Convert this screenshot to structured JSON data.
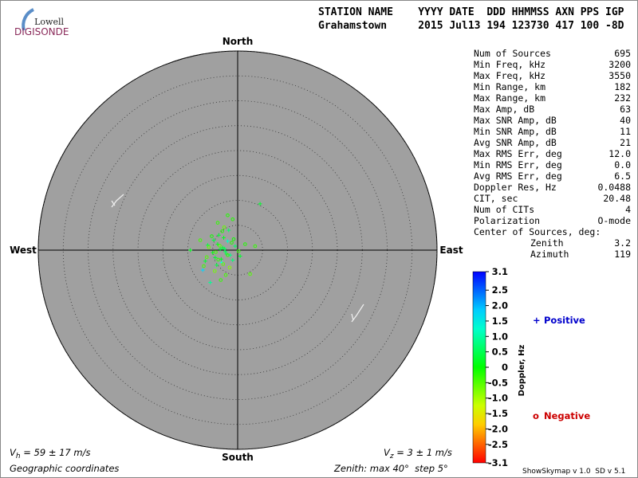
{
  "logo": {
    "line1": "Lowell",
    "line2": "DIGISONDE"
  },
  "header": {
    "columns": "STATION NAME    YYYY DATE  DDD HHMMSS AXN PPS IGP",
    "values": "Grahamstown     2015 Jul13 194 123730 417 100 -8D"
  },
  "stats": [
    [
      "Num of Sources",
      "695"
    ],
    [
      "Min Freq, kHz",
      "3200"
    ],
    [
      "Max Freq, kHz",
      "3550"
    ],
    [
      "Min Range, km",
      "182"
    ],
    [
      "Max Range, km",
      "232"
    ],
    [
      "Max Amp, dB",
      "63"
    ],
    [
      "Max SNR Amp, dB",
      "40"
    ],
    [
      "Min SNR Amp, dB",
      "11"
    ],
    [
      "Avg SNR Amp, dB",
      "21"
    ],
    [
      "Max RMS Err, deg",
      "12.0"
    ],
    [
      "Min RMS Err, deg",
      "0.0"
    ],
    [
      "Avg RMS Err, deg",
      "6.5"
    ],
    [
      "Doppler Res, Hz",
      "0.0488"
    ],
    [
      "CIT, sec",
      "20.48"
    ],
    [
      "Num of CITs",
      "4"
    ],
    [
      "Polarization",
      "O-mode"
    ]
  ],
  "center": {
    "label": "Center of Sources, deg:",
    "zenith": [
      "Zenith",
      "3.2"
    ],
    "azimuth": [
      "Azimuth",
      "119"
    ]
  },
  "chart_data": {
    "type": "skymap",
    "directions": {
      "north": "North",
      "south": "South",
      "west": "West",
      "east": "East"
    },
    "rlim": [
      0,
      40
    ],
    "rticks": [
      5,
      10,
      15,
      20,
      25,
      30,
      35,
      40
    ],
    "series": [
      {
        "name": "Positive",
        "marker": "+",
        "color": "#0000cc",
        "x": [
          -3,
          -2.5,
          -4,
          -1.5,
          -3.5,
          -2,
          -5,
          -0.5,
          -4.5,
          -3.2,
          -2.8,
          -6,
          -1,
          -3.8,
          -2.2,
          -7,
          -5.5,
          -9.5,
          -4.2,
          0.5,
          -1.8,
          -3.3,
          -2.6,
          -6.5,
          -4.8,
          4.5
        ],
        "y": [
          0.5,
          -0.3,
          1.2,
          -1,
          0.2,
          1.8,
          -0.5,
          0.8,
          -1.5,
          -2.5,
          2.5,
          1,
          -2,
          3,
          -0.8,
          -4,
          -6.5,
          0,
          -3,
          -1.2,
          4,
          -1.8,
          0.3,
          -2.2,
          2,
          9.3
        ],
        "values": [
          0.3,
          0.5,
          0.2,
          0.8,
          0.4,
          1.2,
          0.1,
          0.6,
          0.3,
          1.5,
          0.2,
          0.4,
          0.7,
          0.3,
          0.5,
          1.8,
          0.9,
          0.2,
          0.4,
          0.3,
          0.6,
          0.2,
          0.5,
          0.3,
          0.4,
          0.3
        ]
      },
      {
        "name": "Negative",
        "marker": "o",
        "color": "#cc0000",
        "x": [
          -2,
          -3.6,
          -1.2,
          -4.4,
          -2.9,
          -5.2,
          0.2,
          -3.1,
          -6.2,
          -1.6,
          -4,
          -2.4,
          1.5,
          -5.8,
          -3.4,
          -0.8,
          -7.5,
          -2,
          -4.6,
          2.5,
          -3.9,
          -1,
          -6.8,
          -2.7,
          3.5
        ],
        "y": [
          -1,
          0.9,
          1.5,
          -0.4,
          -2.8,
          2.8,
          -0.2,
          3.8,
          -1.4,
          -3.5,
          5.5,
          -5,
          1.2,
          0.6,
          -6,
          2.2,
          2,
          7,
          -4.2,
          -4.8,
          -1.9,
          6.2,
          -3.2,
          4.6,
          0.8
        ],
        "values": [
          -0.3,
          -0.5,
          -0.2,
          -0.4,
          -0.6,
          -0.1,
          -0.3,
          -0.2,
          -0.5,
          -0.8,
          -0.3,
          -0.4,
          -0.2,
          -0.6,
          -0.3,
          -0.1,
          -0.4,
          -0.2,
          -0.7,
          -0.5,
          -0.3,
          -0.2,
          -0.4,
          -0.6,
          -0.3
        ]
      }
    ],
    "colorbar": {
      "label": "Doppler, Hz",
      "lim": [
        -3.1,
        3.1
      ],
      "ticks": [
        3.1,
        2.5,
        {
          "value": 2,
          "label": "2.0"
        },
        1.5,
        {
          "value": 1,
          "label": "1.0"
        },
        0.5,
        0,
        -0.5,
        {
          "value": -1,
          "label": "-1.0"
        },
        -1.5,
        {
          "value": -2,
          "label": "-2.0"
        },
        -2.5,
        -3.1
      ]
    },
    "vh": {
      "symbol": "V",
      "sub": "h",
      "text": " = 59 ± 17 m/s"
    },
    "vz": {
      "symbol": "V",
      "sub": "z",
      "text": " = 3 ± 1 m/s"
    }
  },
  "footer": {
    "coords": "Geographic coordinates",
    "zenith": "Zenith: max 40°  step 5°",
    "version": "ShowSkymap v 1.0  SD v 5.1"
  }
}
